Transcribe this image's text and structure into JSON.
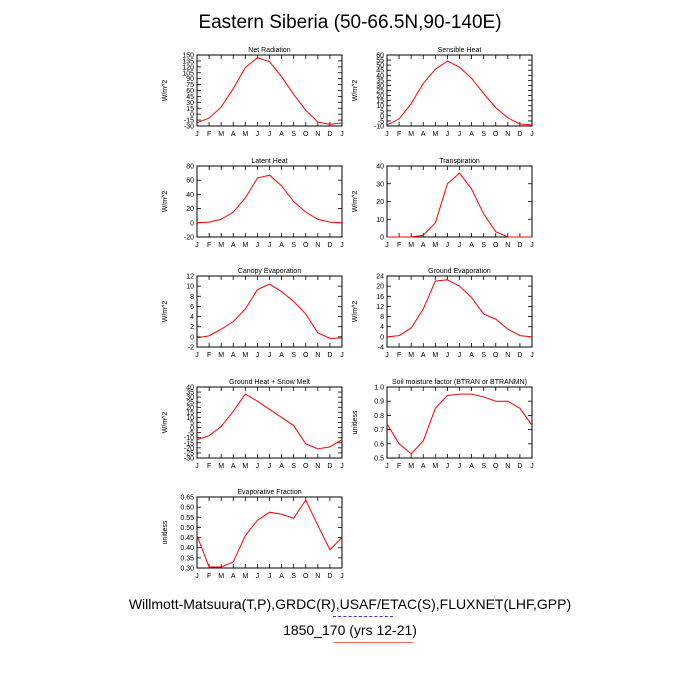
{
  "title": "Eastern Siberia (50-66.5N,90-140E)",
  "footer": {
    "source": "Willmott-Matsuura(T,P),GRDC(R),USAF/ETAC(S),FLUXNET(LHF,GPP)",
    "run": "1850_170 (yrs 12-21)"
  },
  "colors": {
    "series": "#ff0000",
    "axis": "#000000",
    "underline_blue": "#3333cc",
    "underline_red": "#ff6666"
  },
  "chart_data": [
    {
      "type": "line",
      "title": "Net Radiation",
      "ylabel": "W/m^2",
      "x": [
        "J",
        "F",
        "M",
        "A",
        "M",
        "J",
        "J",
        "A",
        "S",
        "O",
        "N",
        "D",
        "J"
      ],
      "ylim": [
        -30,
        150
      ],
      "yticks": [
        -30,
        -15,
        0,
        15,
        30,
        45,
        60,
        75,
        90,
        105,
        120,
        135,
        150
      ],
      "values": [
        -22,
        -10,
        18,
        65,
        118,
        143,
        133,
        95,
        50,
        10,
        -20,
        -26,
        -22
      ]
    },
    {
      "type": "line",
      "title": "Sensible Heat",
      "ylabel": "W/m^2",
      "x": [
        "J",
        "F",
        "M",
        "A",
        "M",
        "J",
        "J",
        "A",
        "S",
        "O",
        "N",
        "D",
        "J"
      ],
      "ylim": [
        -10,
        60
      ],
      "yticks": [
        -10,
        -5,
        0,
        5,
        10,
        15,
        20,
        25,
        30,
        35,
        40,
        45,
        50,
        55,
        60
      ],
      "values": [
        -9,
        -3,
        12,
        32,
        46,
        54,
        48,
        37,
        22,
        8,
        -2,
        -8,
        -9
      ]
    },
    {
      "type": "line",
      "title": "Latent Heat",
      "ylabel": "W/m^2",
      "x": [
        "J",
        "F",
        "M",
        "A",
        "M",
        "J",
        "J",
        "A",
        "S",
        "O",
        "N",
        "D",
        "J"
      ],
      "ylim": [
        -20,
        80
      ],
      "yticks": [
        -20,
        0,
        20,
        40,
        60,
        80
      ],
      "values": [
        0,
        1,
        5,
        15,
        35,
        63,
        67,
        52,
        30,
        15,
        5,
        1,
        0
      ]
    },
    {
      "type": "line",
      "title": "Transpiration",
      "ylabel": "W/m^2",
      "x": [
        "J",
        "F",
        "M",
        "A",
        "M",
        "J",
        "J",
        "A",
        "S",
        "O",
        "N",
        "D",
        "J"
      ],
      "ylim": [
        0,
        40
      ],
      "yticks": [
        0,
        10,
        20,
        30,
        40
      ],
      "values": [
        0,
        0,
        0,
        1,
        8,
        30,
        36,
        27,
        13,
        3,
        0,
        0,
        0
      ]
    },
    {
      "type": "line",
      "title": "Canopy Evaporation",
      "ylabel": "W/m^2",
      "x": [
        "J",
        "F",
        "M",
        "A",
        "M",
        "J",
        "J",
        "A",
        "S",
        "O",
        "N",
        "D",
        "J"
      ],
      "ylim": [
        -2,
        12
      ],
      "yticks": [
        -2,
        0,
        2,
        4,
        6,
        8,
        10,
        12
      ],
      "values": [
        -0.2,
        0.2,
        1.5,
        3,
        5.5,
        9.3,
        10.4,
        8.9,
        7,
        4.5,
        0.8,
        -0.3,
        -0.2
      ]
    },
    {
      "type": "line",
      "title": "Ground Evaporation",
      "ylabel": "W/m^2",
      "x": [
        "J",
        "F",
        "M",
        "A",
        "M",
        "J",
        "J",
        "A",
        "S",
        "O",
        "N",
        "D",
        "J"
      ],
      "ylim": [
        -4,
        24
      ],
      "yticks": [
        -4,
        0,
        4,
        8,
        12,
        16,
        20,
        24
      ],
      "values": [
        0,
        0.5,
        3.5,
        11,
        22,
        22.5,
        20,
        15.5,
        9,
        7,
        3,
        0.5,
        0
      ]
    },
    {
      "type": "line",
      "title": "Ground Heat + Snow Melt",
      "ylabel": "W/m^2",
      "x": [
        "J",
        "F",
        "M",
        "A",
        "M",
        "J",
        "J",
        "A",
        "S",
        "O",
        "N",
        "D",
        "J"
      ],
      "ylim": [
        -30,
        40
      ],
      "yticks": [
        -30,
        -25,
        -20,
        -15,
        -10,
        -5,
        0,
        5,
        10,
        15,
        20,
        25,
        30,
        35,
        40
      ],
      "values": [
        -12,
        -8,
        1,
        16,
        33,
        26,
        18,
        10,
        2,
        -16,
        -21,
        -19,
        -12
      ]
    },
    {
      "type": "line",
      "title": "Soil moisture factor (BTRAN or BTRANMN)",
      "ylabel": "unitless",
      "x": [
        "J",
        "F",
        "M",
        "A",
        "M",
        "J",
        "J",
        "A",
        "S",
        "O",
        "N",
        "D",
        "J"
      ],
      "ylim": [
        0.5,
        1.0
      ],
      "yticks": [
        0.5,
        0.6,
        0.7,
        0.8,
        0.9,
        1.0
      ],
      "values": [
        0.74,
        0.6,
        0.53,
        0.62,
        0.85,
        0.94,
        0.95,
        0.95,
        0.93,
        0.9,
        0.9,
        0.85,
        0.73
      ]
    },
    {
      "type": "line",
      "title": "Evaporative Fraction",
      "ylabel": "unitless",
      "x": [
        "J",
        "F",
        "M",
        "A",
        "M",
        "J",
        "J",
        "A",
        "S",
        "O",
        "N",
        "D",
        "J"
      ],
      "ylim": [
        0.3,
        0.65
      ],
      "yticks": [
        0.3,
        0.35,
        0.4,
        0.45,
        0.5,
        0.55,
        0.6,
        0.65
      ],
      "values": [
        0.46,
        0.305,
        0.305,
        0.33,
        0.46,
        0.535,
        0.575,
        0.565,
        0.545,
        0.635,
        0.51,
        0.39,
        0.45
      ]
    }
  ]
}
